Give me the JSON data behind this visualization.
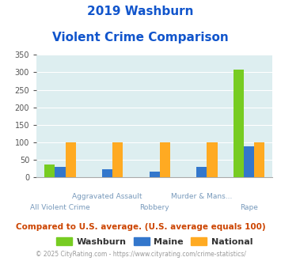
{
  "title_line1": "2019 Washburn",
  "title_line2": "Violent Crime Comparison",
  "categories": [
    "All Violent Crime",
    "Aggravated Assault",
    "Robbery",
    "Murder & Mans...",
    "Rape"
  ],
  "cat_labels_top": [
    "",
    "Aggravated Assault",
    "",
    "Murder & Mans...",
    ""
  ],
  "cat_labels_bot": [
    "All Violent Crime",
    "",
    "Robbery",
    "",
    "Rape"
  ],
  "washburn": [
    36,
    0,
    0,
    0,
    307
  ],
  "maine": [
    30,
    24,
    16,
    31,
    89
  ],
  "national": [
    100,
    100,
    100,
    100,
    100
  ],
  "colors": {
    "washburn": "#77cc22",
    "maine": "#3377cc",
    "national": "#ffaa22"
  },
  "ylim": [
    0,
    350
  ],
  "yticks": [
    0,
    50,
    100,
    150,
    200,
    250,
    300,
    350
  ],
  "bg_color": "#ddeef0",
  "title_color": "#1155cc",
  "xlabel_color": "#7799bb",
  "legend_color": "#333333",
  "footer_text": "Compared to U.S. average. (U.S. average equals 100)",
  "credit_text": "© 2025 CityRating.com - https://www.cityrating.com/crime-statistics/",
  "footer_color": "#cc4400",
  "credit_color": "#999999",
  "bar_width": 0.22,
  "title_fontsize": 11,
  "tick_fontsize": 7,
  "xlabel_fontsize": 6.5,
  "legend_fontsize": 8,
  "footer_fontsize": 7.5,
  "credit_fontsize": 5.5
}
